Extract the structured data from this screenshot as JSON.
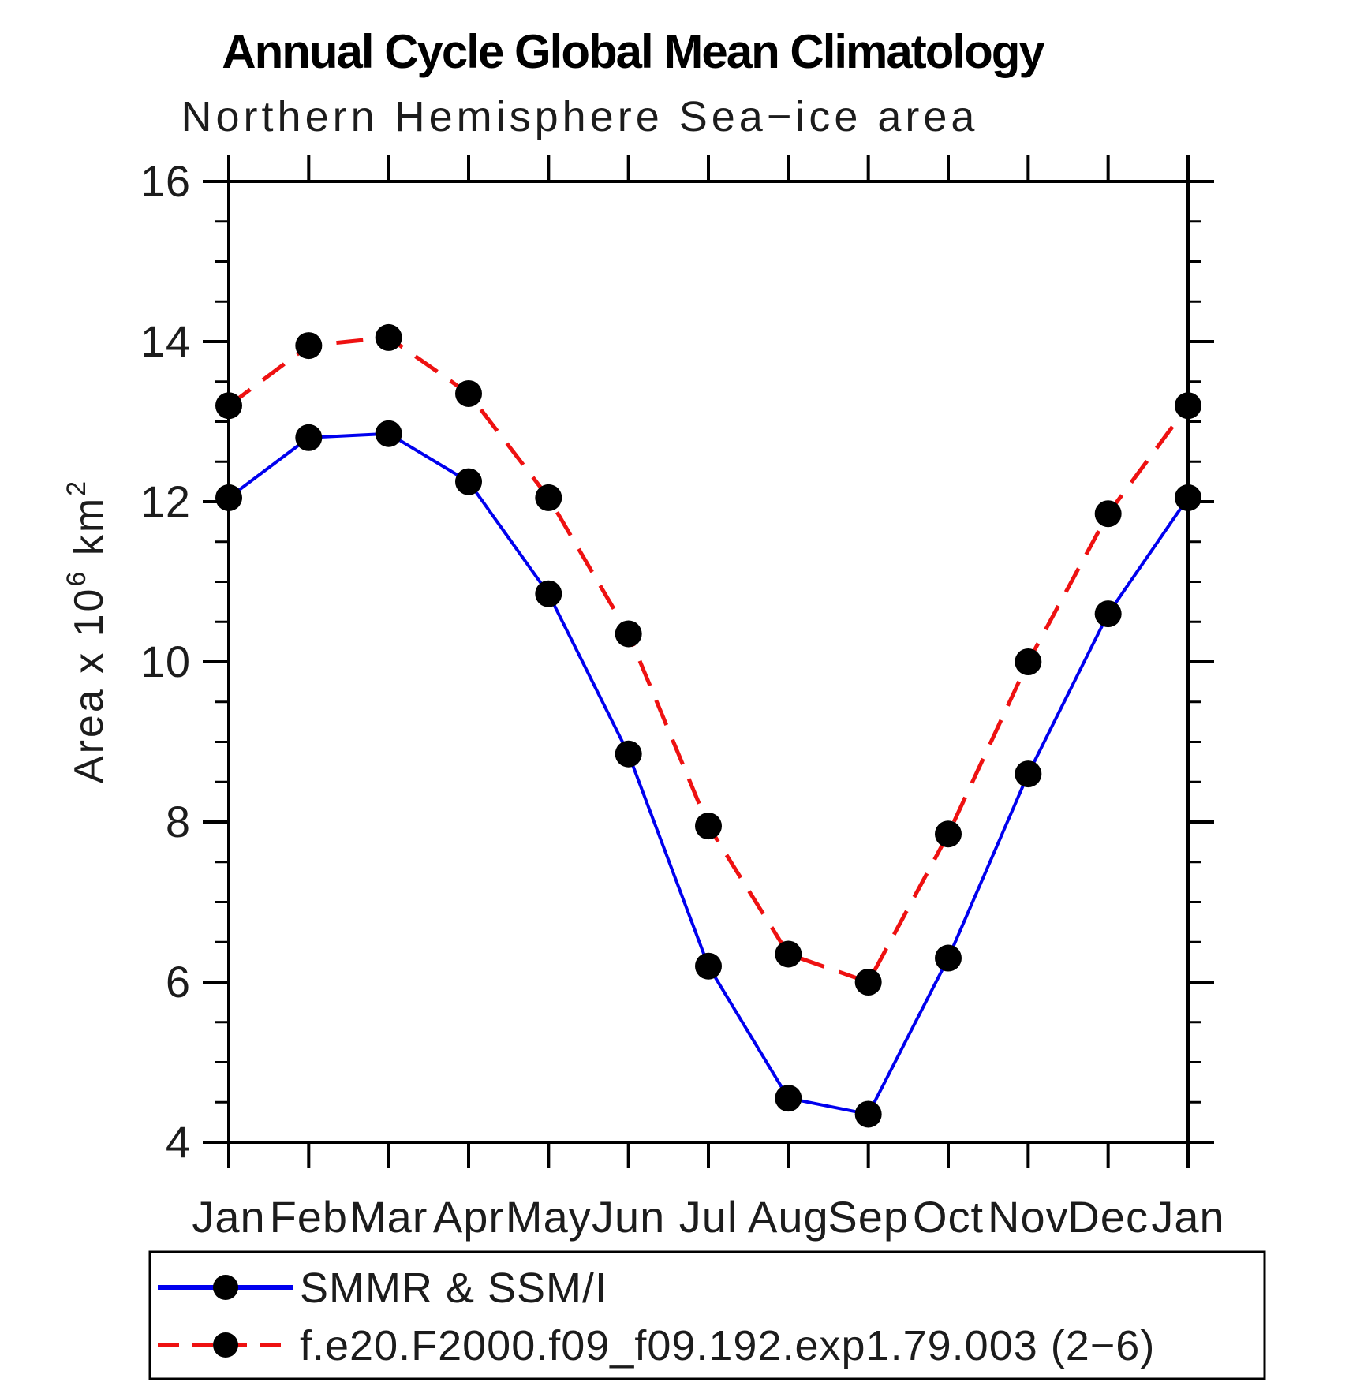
{
  "header": {
    "title": "Annual Cycle Global Mean Climatology",
    "subtitle": "Northern Hemisphere Sea−ice area"
  },
  "colors": {
    "observations_line": "#0000ee",
    "model_line": "#ee1111",
    "marker": "#000000",
    "axis": "#000000",
    "background": "#ffffff"
  },
  "chart_data": {
    "type": "line",
    "title": "Annual Cycle Global Mean Climatology",
    "subtitle": "Northern Hemisphere Sea−ice area",
    "x_categories": [
      "Jan",
      "Feb",
      "Mar",
      "Apr",
      "May",
      "Jun",
      "Jul",
      "Aug",
      "Sep",
      "Oct",
      "Nov",
      "Dec",
      "Jan"
    ],
    "ylabel": "Area x 10^6 km^2",
    "ylabel_parts": {
      "main": "Area x 10",
      "sup1": "6",
      "mid": " km",
      "sup2": "2"
    },
    "ylim": [
      4,
      16
    ],
    "y_major_ticks": [
      16,
      14,
      12,
      10,
      8,
      6,
      4
    ],
    "y_minor_step": 0.5,
    "grid": false,
    "legend_position": "bottom-left-box",
    "series": [
      {
        "name": "SMMR & SSM/I",
        "style": "solid",
        "color_key": "observations_line",
        "marker": "filled-circle",
        "values": [
          12.05,
          12.8,
          12.85,
          12.25,
          10.85,
          8.85,
          6.2,
          4.55,
          4.35,
          6.3,
          8.6,
          10.6,
          12.05
        ]
      },
      {
        "name": "f.e20.F2000.f09_f09.192.exp1.79.003 (2−6)",
        "style": "dashed",
        "color_key": "model_line",
        "marker": "filled-circle",
        "values": [
          13.2,
          13.95,
          14.05,
          13.35,
          12.05,
          10.35,
          7.95,
          6.35,
          6.0,
          7.85,
          10.0,
          11.85,
          13.2
        ]
      }
    ]
  }
}
